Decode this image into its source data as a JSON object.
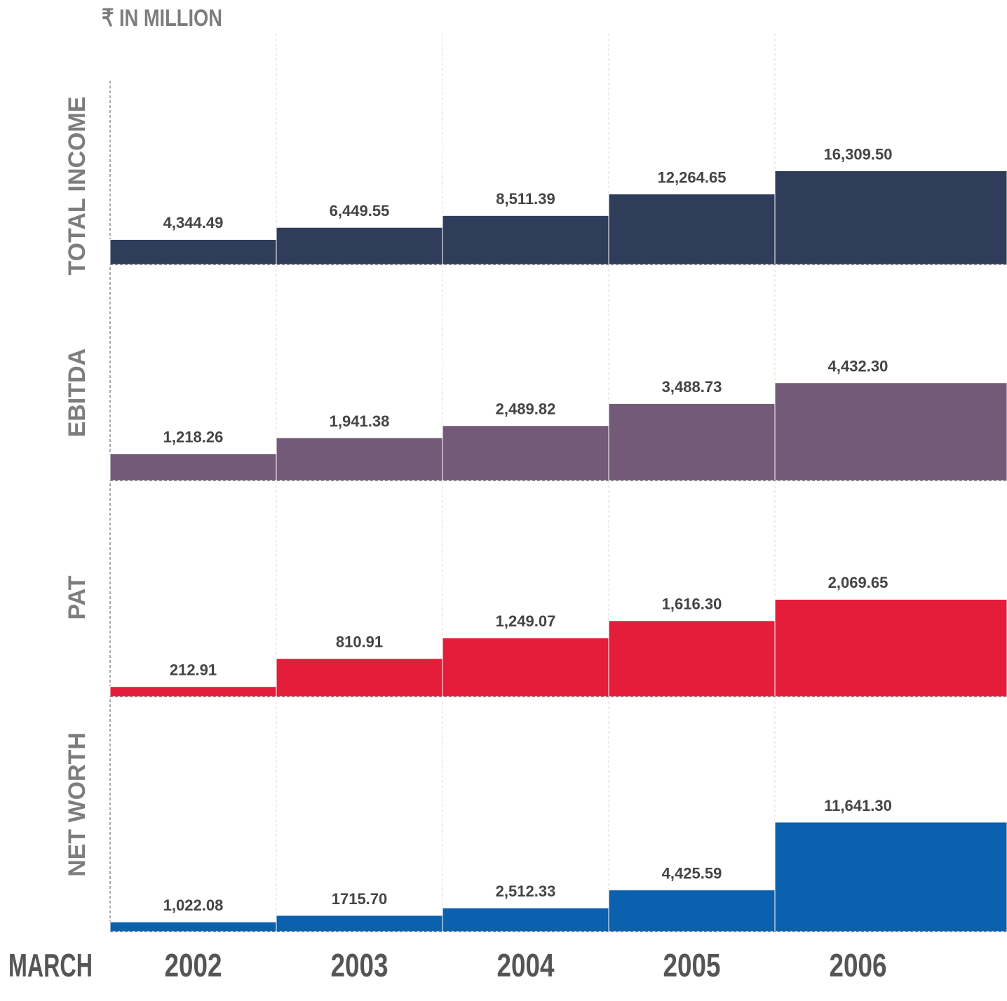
{
  "unit": "₹ IN MILLION",
  "chart_data": [
    {
      "type": "bar",
      "title": "TOTAL INCOME",
      "color": "#2f3d5a",
      "ylim": [
        0,
        32000
      ],
      "values": [
        4344.49,
        6449.55,
        8511.39,
        12264.65,
        16309.5
      ],
      "value_labels": [
        "4,344.49",
        "6,449.55",
        "8,511.39",
        "12,264.65",
        "16,309.50"
      ]
    },
    {
      "type": "bar",
      "title": "EBITDA",
      "color": "#725a78",
      "ylim": [
        0,
        9800
      ],
      "values": [
        1218.26,
        1941.38,
        2489.82,
        3488.73,
        4432.3
      ],
      "value_labels": [
        "1,218.26",
        "1,941.38",
        "2,489.82",
        "3,488.73",
        "4,432.30"
      ]
    },
    {
      "type": "bar",
      "title": "PAT",
      "color": "#e41e3a",
      "ylim": [
        0,
        4600
      ],
      "values": [
        212.91,
        810.91,
        1249.07,
        1616.3,
        2069.65
      ],
      "value_labels": [
        "212.91",
        "810.91",
        "1,249.07",
        "1,616.30",
        "2,069.65"
      ]
    },
    {
      "type": "bar",
      "title": "NET WORTH",
      "color": "#0b61ad",
      "ylim": [
        0,
        25000
      ],
      "values": [
        1022.08,
        1715.7,
        2512.33,
        4425.59,
        11641.3
      ],
      "value_labels": [
        "1,022.08",
        "1715.70",
        "2,512.33",
        "4,425.59",
        "11,641.30"
      ],
      "x_label": "MARCH",
      "categories": [
        "2002",
        "2003",
        "2004",
        "2005",
        "2006"
      ]
    }
  ]
}
